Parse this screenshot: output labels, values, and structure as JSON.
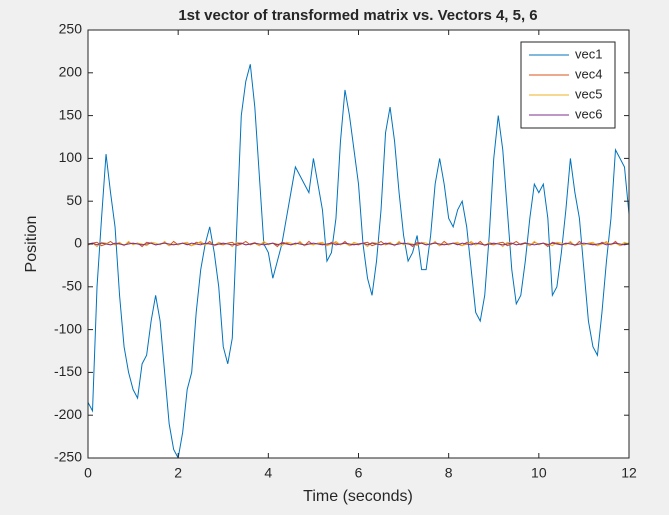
{
  "chart_data": {
    "type": "line",
    "title": "1st vector of transformed matrix vs. Vectors 4, 5, 6",
    "xlabel": "Time (seconds)",
    "ylabel": "Position",
    "x": [
      0,
      0.1,
      0.2,
      0.3,
      0.4,
      0.5,
      0.6,
      0.7,
      0.8,
      0.9,
      1,
      1.1,
      1.2,
      1.3,
      1.4,
      1.5,
      1.6,
      1.7,
      1.8,
      1.9,
      2,
      2.1,
      2.2,
      2.3,
      2.4,
      2.5,
      2.6,
      2.7,
      2.8,
      2.9,
      3,
      3.1,
      3.2,
      3.3,
      3.4,
      3.5,
      3.6,
      3.7,
      3.8,
      3.9,
      4,
      4.1,
      4.2,
      4.3,
      4.4,
      4.5,
      4.6,
      4.7,
      4.8,
      4.9,
      5,
      5.1,
      5.2,
      5.3,
      5.4,
      5.5,
      5.6,
      5.7,
      5.8,
      5.9,
      6,
      6.1,
      6.2,
      6.3,
      6.4,
      6.5,
      6.6,
      6.7,
      6.8,
      6.9,
      7,
      7.1,
      7.2,
      7.3,
      7.4,
      7.5,
      7.6,
      7.7,
      7.8,
      7.9,
      8,
      8.1,
      8.2,
      8.3,
      8.4,
      8.5,
      8.6,
      8.7,
      8.8,
      8.9,
      9,
      9.1,
      9.2,
      9.3,
      9.4,
      9.5,
      9.6,
      9.7,
      9.8,
      9.9,
      10,
      10.1,
      10.2,
      10.3,
      10.4,
      10.5,
      10.6,
      10.7,
      10.8,
      10.9,
      11,
      11.1,
      11.2,
      11.3,
      11.4,
      11.5,
      11.6,
      11.7,
      11.8,
      11.9,
      12
    ],
    "series": [
      {
        "name": "vec1",
        "color": "#0072BD",
        "values": [
          -185,
          -195,
          -50,
          30,
          105,
          60,
          20,
          -60,
          -120,
          -150,
          -170,
          -180,
          -140,
          -130,
          -90,
          -60,
          -90,
          -150,
          -210,
          -240,
          -250,
          -220,
          -170,
          -150,
          -80,
          -30,
          0,
          20,
          -10,
          -50,
          -120,
          -140,
          -110,
          20,
          150,
          190,
          210,
          160,
          80,
          0,
          -10,
          -40,
          -20,
          0,
          30,
          60,
          90,
          80,
          70,
          60,
          100,
          70,
          40,
          -20,
          -10,
          30,
          120,
          180,
          150,
          110,
          70,
          0,
          -40,
          -60,
          -20,
          40,
          130,
          160,
          120,
          60,
          10,
          -20,
          -10,
          10,
          -30,
          -30,
          10,
          70,
          100,
          70,
          30,
          20,
          40,
          50,
          20,
          -30,
          -80,
          -90,
          -60,
          10,
          100,
          150,
          110,
          40,
          -30,
          -70,
          -60,
          -20,
          30,
          70,
          60,
          70,
          30,
          -60,
          -50,
          -10,
          40,
          100,
          60,
          30,
          -30,
          -90,
          -120,
          -130,
          -80,
          -20,
          30,
          110,
          100,
          90,
          35
        ]
      },
      {
        "name": "vec4",
        "color": "#D95319",
        "values": [
          -1,
          1,
          2,
          -2,
          0,
          3,
          -1,
          1,
          -2,
          2,
          0,
          1,
          -3,
          2,
          1,
          -1,
          0,
          2,
          -2,
          3,
          -1,
          1,
          0,
          -2,
          2,
          1,
          -1,
          3,
          -2,
          0,
          -1,
          1,
          2,
          -2,
          0,
          3,
          -1,
          1,
          -2,
          2,
          0,
          1,
          -3,
          2,
          1,
          -1,
          0,
          2,
          -2,
          3,
          -1,
          1,
          0,
          -2,
          2,
          1,
          -1,
          3,
          -2,
          0,
          -1,
          1,
          2,
          -2,
          0,
          3,
          -1,
          1,
          -2,
          2,
          0,
          1,
          -3,
          2,
          1,
          -1,
          0,
          2,
          -2,
          3,
          -1,
          1,
          0,
          -2,
          2,
          1,
          -1,
          3,
          -2,
          0,
          -1,
          1,
          2,
          -2,
          0,
          3,
          -1,
          1,
          -2,
          2,
          0,
          1,
          -3,
          2,
          1,
          -1,
          0,
          2,
          -2,
          3,
          -1,
          1,
          0,
          -2,
          2,
          1,
          -1,
          3,
          -2,
          0,
          1
        ]
      },
      {
        "name": "vec5",
        "color": "#EDB120",
        "values": [
          0,
          1,
          -3,
          2,
          1,
          -1,
          0,
          2,
          -2,
          3,
          -1,
          1,
          0,
          -2,
          2,
          1,
          -1,
          3,
          -2,
          0,
          -1,
          1,
          2,
          -2,
          0,
          3,
          -1,
          1,
          -2,
          2,
          0,
          1,
          -3,
          2,
          1,
          -1,
          0,
          2,
          -2,
          3,
          -1,
          1,
          0,
          -2,
          2,
          1,
          -1,
          3,
          -2,
          0,
          -1,
          1,
          2,
          -2,
          0,
          3,
          -1,
          1,
          -2,
          2,
          0,
          1,
          -3,
          2,
          1,
          -1,
          0,
          2,
          -2,
          3,
          -1,
          1,
          0,
          -2,
          2,
          1,
          -1,
          3,
          -2,
          0,
          -1,
          1,
          2,
          -2,
          0,
          3,
          -1,
          1,
          -2,
          2,
          0,
          1,
          -3,
          2,
          1,
          -1,
          0,
          2,
          -2,
          3,
          -1,
          1,
          0,
          -2,
          2,
          1,
          -1,
          3,
          -2,
          0,
          -1,
          1,
          2,
          -2,
          0,
          3,
          -1,
          1,
          -2,
          2,
          0
        ]
      },
      {
        "name": "vec6",
        "color": "#7E2F8E",
        "values": [
          0,
          1,
          -1,
          1,
          0,
          -1,
          1,
          0,
          -1,
          0,
          1,
          0,
          -1,
          0,
          1,
          -1,
          0,
          1,
          0,
          -1,
          0,
          1,
          -1,
          1,
          0,
          -1,
          1,
          0,
          -1,
          0,
          1,
          0,
          -1,
          0,
          1,
          -1,
          0,
          1,
          0,
          -1,
          0,
          1,
          -1,
          1,
          0,
          -1,
          1,
          0,
          -1,
          0,
          1,
          0,
          -1,
          0,
          1,
          -1,
          0,
          1,
          0,
          -1,
          0,
          1,
          -1,
          1,
          0,
          -1,
          1,
          0,
          -1,
          0,
          1,
          0,
          -1,
          0,
          1,
          -1,
          0,
          1,
          0,
          -1,
          0,
          1,
          -1,
          1,
          0,
          -1,
          1,
          0,
          -1,
          0,
          1,
          0,
          -1,
          0,
          1,
          -1,
          0,
          1,
          0,
          -1,
          0,
          1,
          -1,
          1,
          0,
          -1,
          1,
          0,
          -1,
          0,
          1,
          0,
          -1,
          0,
          1,
          -1,
          0,
          1,
          0,
          -1,
          0
        ]
      }
    ],
    "xlim": [
      0,
      12
    ],
    "xticks": [
      0,
      2,
      4,
      6,
      8,
      10,
      12
    ],
    "ylim": [
      -250,
      250
    ],
    "yticks": [
      -250,
      -200,
      -150,
      -100,
      -50,
      0,
      50,
      100,
      150,
      200,
      250
    ],
    "legend": "upper right",
    "grid": false
  }
}
